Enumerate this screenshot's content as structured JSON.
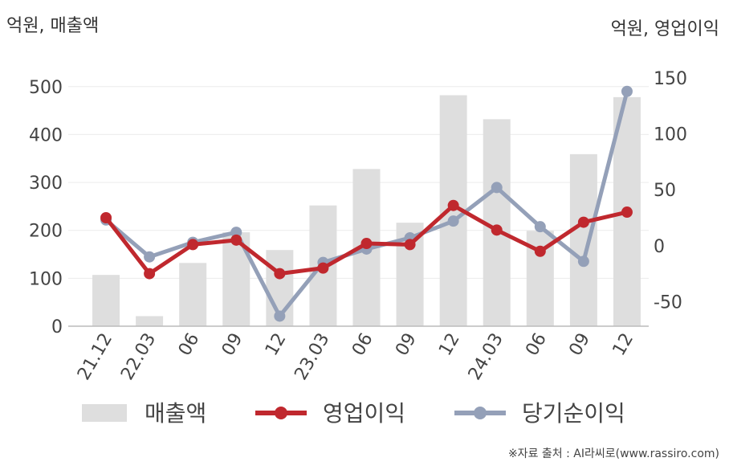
{
  "chart_data": {
    "type": "bar+line",
    "left_unit": "억원, 매출액",
    "right_unit": "억원, 영업이익",
    "categories": [
      "21.12",
      "22.03",
      "06",
      "09",
      "12",
      "23.03",
      "06",
      "09",
      "12",
      "24.03",
      "06",
      "09",
      "12"
    ],
    "left_axis": {
      "ticks": [
        0,
        100,
        200,
        300,
        400,
        500
      ],
      "range": [
        0,
        560
      ]
    },
    "right_axis": {
      "ticks": [
        -50,
        0,
        50,
        100,
        150
      ],
      "range": [
        -72,
        168
      ]
    },
    "bar_series": {
      "name": "매출액",
      "axis": "left",
      "color": "#dedede",
      "values": [
        107,
        21,
        132,
        196,
        159,
        252,
        328,
        216,
        482,
        432,
        199,
        359,
        478
      ]
    },
    "line_series": [
      {
        "name": "영업이익",
        "axis": "right",
        "color": "#c0282e",
        "values": [
          25,
          -25,
          1,
          5,
          -25,
          -20,
          2,
          1,
          36,
          14,
          -5,
          21,
          30
        ]
      },
      {
        "name": "당기순이익",
        "axis": "right",
        "color": "#94a0b8",
        "values": [
          23,
          -10,
          3,
          12,
          -63,
          -15,
          -3,
          7,
          22,
          52,
          17,
          -14,
          138
        ]
      }
    ],
    "grid": true,
    "legend_position": "bottom"
  },
  "source": "※자료 출처 : AI라씨로(www.rassiro.com)"
}
